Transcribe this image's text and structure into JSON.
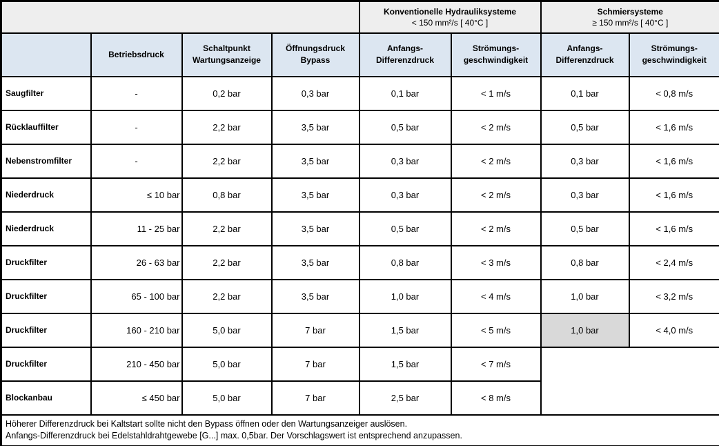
{
  "colors": {
    "border": "#000000",
    "group_band_bg": "#eeeeee",
    "header_bg": "#dce6f1",
    "highlight_cell_bg": "#d9d9d9"
  },
  "table": {
    "group_headers": [
      {
        "title": "Konventionelle Hydrauliksysteme",
        "subtitle": "< 150 mm²/s [ 40°C ]"
      },
      {
        "title": "Schmiersysteme",
        "subtitle": "≥ 150 mm²/s [ 40°C ]"
      }
    ],
    "column_headers": [
      "Betriebsdruck",
      "Schaltpunkt\nWartungsanzeige",
      "Öffnungsdruck\nBypass",
      "Anfangs-\nDifferenzdruck",
      "Strömungs-\ngeschwindigkeit",
      "Anfangs-\nDifferenzdruck",
      "Strömungs-\ngeschwindigkeit"
    ],
    "rows": [
      {
        "label": "Saugfilter",
        "betriebsdruck": "-",
        "schaltpunkt": "0,2 bar",
        "bypass": "0,3 bar",
        "hyd_dp": "0,1 bar",
        "hyd_v": "< 1 m/s",
        "schmier_dp": "0,1 bar",
        "schmier_v": "< 0,8 m/s"
      },
      {
        "label": "Rücklauffilter",
        "betriebsdruck": "-",
        "schaltpunkt": "2,2 bar",
        "bypass": "3,5 bar",
        "hyd_dp": "0,5 bar",
        "hyd_v": "< 2 m/s",
        "schmier_dp": "0,5 bar",
        "schmier_v": "< 1,6 m/s"
      },
      {
        "label": "Nebenstromfilter",
        "betriebsdruck": "-",
        "schaltpunkt": "2,2 bar",
        "bypass": "3,5 bar",
        "hyd_dp": "0,3 bar",
        "hyd_v": "< 2 m/s",
        "schmier_dp": "0,3 bar",
        "schmier_v": "< 1,6 m/s"
      },
      {
        "label": "Niederdruck",
        "betriebsdruck": "≤ 10 bar",
        "schaltpunkt": "0,8 bar",
        "bypass": "3,5 bar",
        "hyd_dp": "0,3 bar",
        "hyd_v": "< 2 m/s",
        "schmier_dp": "0,3 bar",
        "schmier_v": "< 1,6 m/s"
      },
      {
        "label": "Niederdruck",
        "betriebsdruck": "11 - 25 bar",
        "schaltpunkt": "2,2 bar",
        "bypass": "3,5 bar",
        "hyd_dp": "0,5 bar",
        "hyd_v": "< 2 m/s",
        "schmier_dp": "0,5 bar",
        "schmier_v": "< 1,6 m/s"
      },
      {
        "label": "Druckfilter",
        "betriebsdruck": "26 - 63 bar",
        "schaltpunkt": "2,2 bar",
        "bypass": "3,5 bar",
        "hyd_dp": "0,8 bar",
        "hyd_v": "< 3 m/s",
        "schmier_dp": "0,8 bar",
        "schmier_v": "< 2,4 m/s"
      },
      {
        "label": "Druckfilter",
        "betriebsdruck": "65 - 100 bar",
        "schaltpunkt": "2,2 bar",
        "bypass": "3,5 bar",
        "hyd_dp": "1,0 bar",
        "hyd_v": "< 4 m/s",
        "schmier_dp": "1,0 bar",
        "schmier_v": "< 3,2 m/s"
      },
      {
        "label": "Druckfilter",
        "betriebsdruck": "160 - 210 bar",
        "schaltpunkt": "5,0 bar",
        "bypass": "7 bar",
        "hyd_dp": "1,5 bar",
        "hyd_v": "< 5 m/s",
        "schmier_dp": "1,0 bar",
        "schmier_v": "< 4,0 m/s",
        "highlight": [
          "schmier_dp"
        ]
      },
      {
        "label": "Druckfilter",
        "betriebsdruck": "210 - 450 bar",
        "schaltpunkt": "5,0 bar",
        "bypass": "7 bar",
        "hyd_dp": "1,5 bar",
        "hyd_v": "< 7 m/s",
        "merged_empty": true
      },
      {
        "label": "Blockanbau",
        "betriebsdruck": "≤ 450 bar",
        "schaltpunkt": "5,0 bar",
        "bypass": "7 bar",
        "hyd_dp": "2,5 bar",
        "hyd_v": "< 8 m/s"
      }
    ]
  },
  "footnotes": [
    "Höherer Differenzdruck bei Kaltstart sollte nicht den Bypass öffnen oder den Wartungsanzeiger auslösen.",
    "Anfangs-Differenzdruck bei Edelstahldrahtgewebe [G...] max. 0,5bar. Der Vorschlagswert ist entsprechend anzupassen."
  ]
}
